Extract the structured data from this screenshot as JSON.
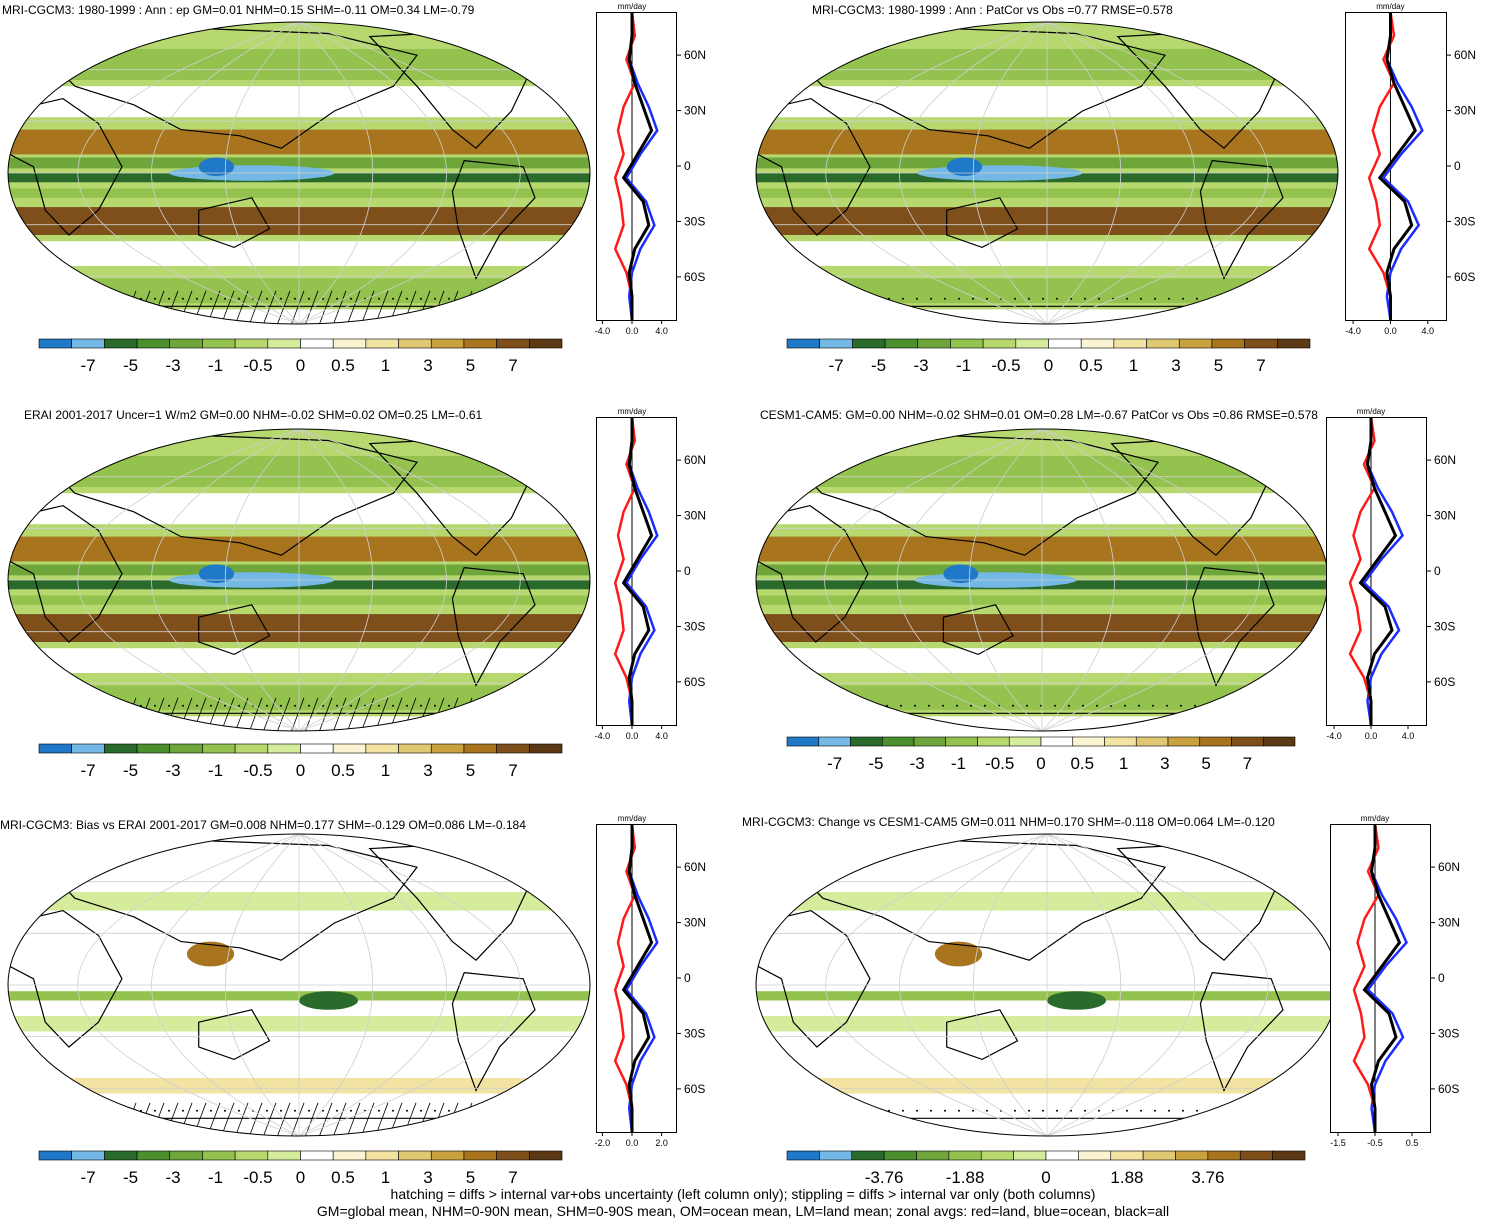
{
  "panels": [
    {
      "title": "MRI-CGCM3: 1980-1999 : Ann : ep GM=0.01 NHM=0.15 SHM=-0.11 OM=0.34 LM=-0.79",
      "zonal_ticks": [
        "-4.0",
        "0.0",
        "4.0"
      ],
      "zonal_unit": "mm/day",
      "lat_labels": [
        "60N",
        "30N",
        "0",
        "30S",
        "60S"
      ],
      "cbar_labels": [
        "-7",
        "-5",
        "-3",
        "-1",
        "-0.5",
        "0",
        "0.5",
        "1",
        "3",
        "5",
        "7"
      ],
      "hatching": true
    },
    {
      "title": "MRI-CGCM3: 1980-1999 : Ann : PatCor vs Obs =0.77 RMSE=0.578",
      "zonal_ticks": [
        "-4.0",
        "0.0",
        "4.0"
      ],
      "zonal_unit": "mm/day",
      "lat_labels": [
        "60N",
        "30N",
        "0",
        "30S",
        "60S"
      ],
      "cbar_labels": [
        "-7",
        "-5",
        "-3",
        "-1",
        "-0.5",
        "0",
        "0.5",
        "1",
        "3",
        "5",
        "7"
      ],
      "hatching": false
    },
    {
      "title": "ERAI 2001-2017 Uncer=1 W/m2 GM=0.00 NHM=-0.02 SHM=0.02 OM=0.25 LM=-0.61",
      "zonal_ticks": [
        "-4.0",
        "0.0",
        "4.0"
      ],
      "zonal_unit": "mm/day",
      "lat_labels": [
        "60N",
        "30N",
        "0",
        "30S",
        "60S"
      ],
      "cbar_labels": [
        "-7",
        "-5",
        "-3",
        "-1",
        "-0.5",
        "0",
        "0.5",
        "1",
        "3",
        "5",
        "7"
      ],
      "hatching": true
    },
    {
      "title": "CESM1-CAM5: GM=0.00 NHM=-0.02 SHM=0.01 OM=0.28 LM=-0.67 PatCor vs Obs =0.86 RMSE=0.578",
      "zonal_ticks": [
        "-4.0",
        "0.0",
        "4.0"
      ],
      "zonal_unit": "mm/day",
      "lat_labels": [
        "60N",
        "30N",
        "0",
        "30S",
        "60S"
      ],
      "cbar_labels": [
        "-7",
        "-5",
        "-3",
        "-1",
        "-0.5",
        "0",
        "0.5",
        "1",
        "3",
        "5",
        "7"
      ],
      "hatching": false
    },
    {
      "title": "MRI-CGCM3: Bias vs ERAI 2001-2017 GM=0.008 NHM=0.177 SHM=-0.129 OM=0.086 LM=-0.184",
      "zonal_ticks": [
        "-2.0",
        "0.0",
        "2.0"
      ],
      "zonal_unit": "mm/day",
      "lat_labels": [
        "60N",
        "30N",
        "0",
        "30S",
        "60S"
      ],
      "cbar_labels": [
        "-7",
        "-5",
        "-3",
        "-1",
        "-0.5",
        "0",
        "0.5",
        "1",
        "3",
        "5",
        "7"
      ],
      "hatching": true
    },
    {
      "title": "MRI-CGCM3: Change vs CESM1-CAM5 GM=0.011 NHM=0.170 SHM=-0.118 OM=0.064 LM=-0.120",
      "zonal_ticks": [
        "-1.5",
        "-0.5",
        "0.5"
      ],
      "zonal_unit": "mm/day",
      "lat_labels": [
        "60N",
        "30N",
        "0",
        "30S",
        "60S"
      ],
      "cbar_labels": [
        "-3.76",
        "-1.88",
        "0",
        "1.88",
        "3.76"
      ],
      "hatching": false
    }
  ],
  "footer": {
    "line1": "hatching = diffs > internal var+obs uncertainty (left column only); stippling = diffs > internal var only (both columns)",
    "line2": "GM=global mean, NHM=0-90N mean, SHM=0-90S mean, OM=ocean mean, LM=land mean; zonal avgs: red=land, blue=ocean, black=all"
  },
  "colors": {
    "palette": [
      "#1f78c8",
      "#74b9e6",
      "#2a6a2a",
      "#4b8f2f",
      "#6ea63b",
      "#93c24e",
      "#b6d86f",
      "#d6ec9d",
      "#ffffff",
      "#fbf4d2",
      "#f2e3a3",
      "#e0c773",
      "#c9a13f",
      "#a8741e",
      "#7e4f1a",
      "#5c3914"
    ],
    "land_curve": "#ff1a1a",
    "ocean_curve": "#1a2cff",
    "all_curve": "#000000"
  }
}
